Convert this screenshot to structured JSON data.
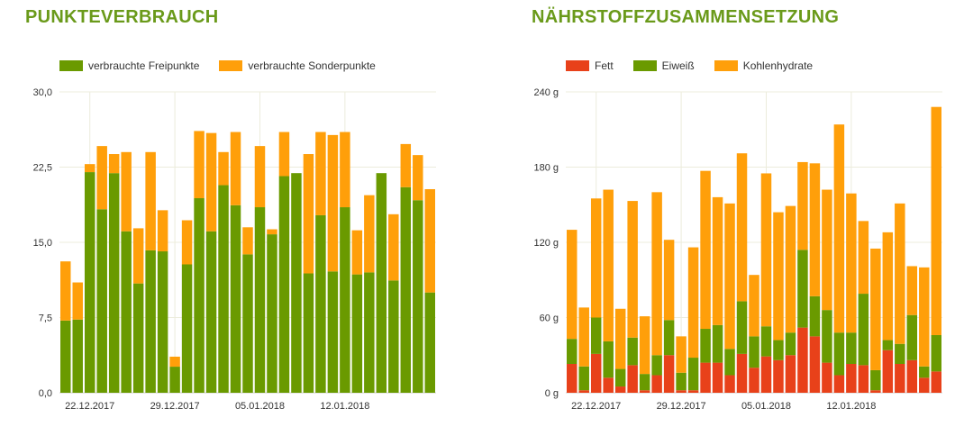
{
  "panels": [
    {
      "title": "PUNKTEVERBRAUCH",
      "legend": [
        {
          "label": "verbrauchte Freipunkte",
          "color": "#6a9a00"
        },
        {
          "label": "verbrauchte Sonderpunkte",
          "color": "#ff9f0a"
        }
      ]
    },
    {
      "title": "NÄHRSTOFFZUSAMMENSETZUNG",
      "legend": [
        {
          "label": "Fett",
          "color": "#e8411a"
        },
        {
          "label": "Eiweiß",
          "color": "#6a9a00"
        },
        {
          "label": "Kohlenhydrate",
          "color": "#ff9f0a"
        }
      ]
    }
  ],
  "chart_data": [
    {
      "type": "bar",
      "stacked": true,
      "title": "PUNKTEVERBRAUCH",
      "ylim": [
        0,
        30
      ],
      "y_ticks": [
        "0,0",
        "7,5",
        "15,0",
        "22,5",
        "30,0"
      ],
      "x_tick_labels": [
        {
          "label": "22.12.2017",
          "index": 2
        },
        {
          "label": "29.12.2017",
          "index": 9
        },
        {
          "label": "05.01.2018",
          "index": 16
        },
        {
          "label": "12.01.2018",
          "index": 23
        }
      ],
      "grid": true,
      "legend_position": "top-left",
      "series": [
        {
          "name": "verbrauchte Freipunkte",
          "color": "#6a9a00",
          "values": [
            7.2,
            7.3,
            22.0,
            18.3,
            21.9,
            16.1,
            10.9,
            14.2,
            14.1,
            2.6,
            12.8,
            19.4,
            16.1,
            20.7,
            18.7,
            13.8,
            18.5,
            15.8,
            21.6,
            21.9,
            11.9,
            17.7,
            12.1,
            18.5,
            11.8,
            12.0,
            21.9,
            11.2,
            20.5,
            19.2,
            10.0
          ]
        },
        {
          "name": "verbrauchte Sonderpunkte",
          "color": "#ff9f0a",
          "values": [
            5.9,
            3.7,
            0.8,
            6.3,
            1.9,
            7.9,
            5.5,
            9.8,
            4.1,
            1.0,
            4.4,
            6.7,
            9.8,
            3.3,
            7.3,
            2.7,
            6.1,
            0.5,
            4.4,
            0.0,
            11.9,
            8.3,
            13.6,
            7.5,
            4.4,
            7.7,
            0.0,
            6.6,
            4.3,
            4.5,
            10.3
          ]
        }
      ]
    },
    {
      "type": "bar",
      "stacked": true,
      "title": "NÄHRSTOFFZUSAMMENSETZUNG",
      "ylim": [
        0,
        240
      ],
      "y_ticks": [
        "0 g",
        "60 g",
        "120 g",
        "180 g",
        "240 g"
      ],
      "x_tick_labels": [
        {
          "label": "22.12.2017",
          "index": 2
        },
        {
          "label": "29.12.2017",
          "index": 9
        },
        {
          "label": "05.01.2018",
          "index": 16
        },
        {
          "label": "12.01.2018",
          "index": 23
        }
      ],
      "grid": true,
      "legend_position": "top-left",
      "series": [
        {
          "name": "Fett",
          "color": "#e8411a",
          "values": [
            23,
            2,
            31,
            12,
            5,
            22,
            2,
            14,
            30,
            2,
            2,
            24,
            24,
            14,
            31,
            20,
            29,
            26,
            30,
            52,
            45,
            24,
            14,
            23,
            22,
            2,
            34,
            23,
            26,
            12,
            17
          ]
        },
        {
          "name": "Eiweiß",
          "color": "#6a9a00",
          "values": [
            20,
            19,
            29,
            29,
            14,
            22,
            13,
            16,
            28,
            14,
            26,
            27,
            30,
            21,
            42,
            25,
            24,
            16,
            18,
            62,
            32,
            42,
            34,
            25,
            57,
            16,
            8,
            16,
            36,
            9,
            29
          ]
        },
        {
          "name": "Kohlenhydrate",
          "color": "#ff9f0a",
          "values": [
            87,
            47,
            95,
            121,
            48,
            109,
            46,
            130,
            64,
            29,
            88,
            126,
            102,
            116,
            118,
            49,
            122,
            102,
            101,
            70,
            106,
            96,
            166,
            111,
            58,
            97,
            86,
            112,
            39,
            79,
            182
          ]
        }
      ]
    }
  ]
}
